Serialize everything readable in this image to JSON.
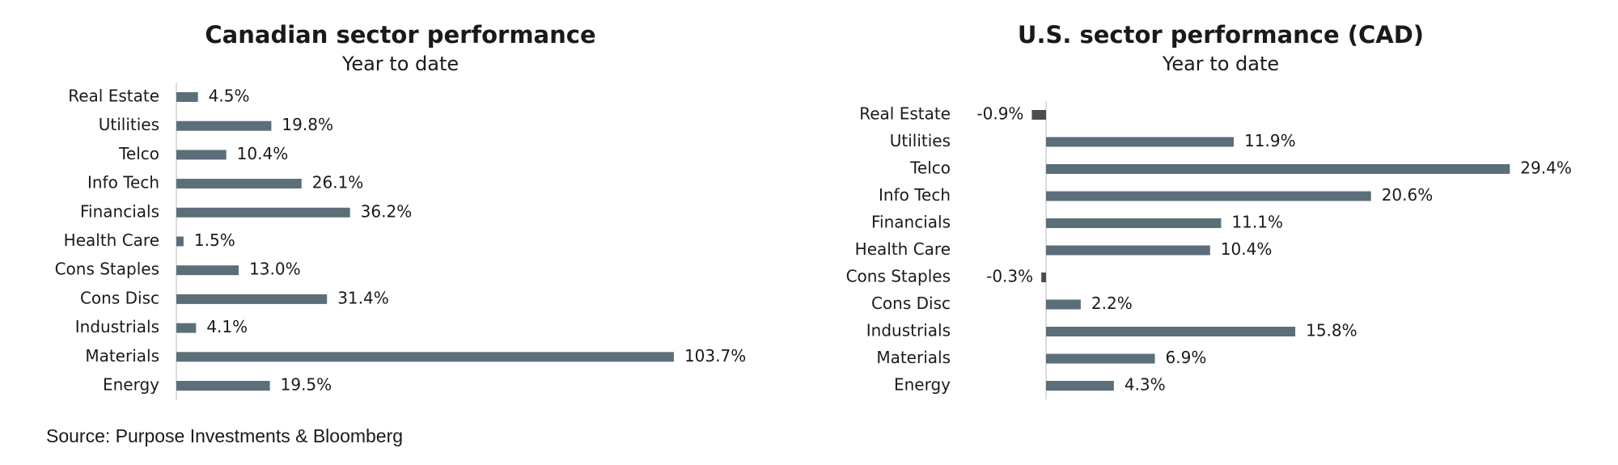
{
  "chart_data": [
    {
      "type": "hbar",
      "title": "Canadian sector performance",
      "subtitle": "Year to date",
      "categories": [
        "Real Estate",
        "Utilities",
        "Telco",
        "Info Tech",
        "Financials",
        "Health Care",
        "Cons Staples",
        "Cons Disc",
        "Industrials",
        "Materials",
        "Energy"
      ],
      "values": [
        4.5,
        19.8,
        10.4,
        26.1,
        36.2,
        1.5,
        13.0,
        31.4,
        4.1,
        103.7,
        19.5
      ],
      "value_labels": [
        "4.5%",
        "19.8%",
        "10.4%",
        "26.1%",
        "36.2%",
        "1.5%",
        "13.0%",
        "31.4%",
        "4.1%",
        "103.7%",
        "19.5%"
      ],
      "color": "#5b6f79",
      "negative_color": "#4d4d4d",
      "xlim": [
        0,
        120
      ]
    },
    {
      "type": "hbar",
      "title": "U.S. sector performance (CAD)",
      "subtitle": "Year to date",
      "categories": [
        "Real Estate",
        "Utilities",
        "Telco",
        "Info Tech",
        "Financials",
        "Health Care",
        "Cons Staples",
        "Cons Disc",
        "Industrials",
        "Materials",
        "Energy"
      ],
      "values": [
        -0.9,
        11.9,
        29.4,
        20.6,
        11.1,
        10.4,
        -0.3,
        2.2,
        15.8,
        6.9,
        4.3
      ],
      "value_labels": [
        "-0.9%",
        "11.9%",
        "29.4%",
        "20.6%",
        "11.1%",
        "10.4%",
        "-0.3%",
        "2.2%",
        "15.8%",
        "6.9%",
        "4.3%"
      ],
      "color": "#5b6f79",
      "negative_color": "#4d4d4d",
      "xlim": [
        -3,
        33
      ]
    }
  ],
  "source": "Source: Purpose Investments & Bloomberg"
}
